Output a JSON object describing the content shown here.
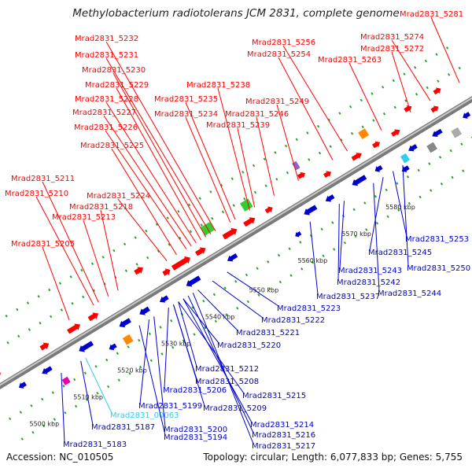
{
  "header": {
    "title": "Methylobacterium radiotolerans JCM 2831, complete genome"
  },
  "footer": {
    "accession": "Accession: NC_010505",
    "topology": "Topology: circular; Length: 6,077,833 bp; Genes: 5,755"
  },
  "colors": {
    "top_strand": "#ff0000",
    "bottom_strand": "#0000cc",
    "rna": "#33ccee",
    "backbone": "#999999"
  },
  "scale_ticks": [
    "5500 kbp",
    "5510 kbp",
    "5520 kbp",
    "5530 kbp",
    "5540 kbp",
    "5550 kbp",
    "5560 kbp",
    "5570 kbp",
    "5580 kbp"
  ],
  "top_labels": [
    "Mrad2831_5281",
    "Mrad2831_5274",
    "Mrad2831_5256",
    "Mrad2831_5272",
    "Mrad2831_5254",
    "Mrad2831_5263",
    "Mrad2831_5232",
    "Mrad2831_5231",
    "Mrad2831_5230",
    "Mrad2831_5229",
    "Mrad2831_5238",
    "Mrad2831_5228",
    "Mrad2831_5235",
    "Mrad2831_5249",
    "Mrad2831_5227",
    "Mrad2831_5234",
    "Mrad2831_5246",
    "Mrad2831_5226",
    "Mrad2831_5239",
    "Mrad2831_5225",
    "Mrad2831_5211",
    "Mrad2831_5210",
    "Mrad2831_5224",
    "Mrad2831_5218",
    "Mrad2831_5213",
    "Mrad2831_5205"
  ],
  "bottom_labels": [
    "Mrad2831_5253",
    "Mrad2831_5245",
    "Mrad2831_5250",
    "Mrad2831_5243",
    "Mrad2831_5242",
    "Mrad2831_5237",
    "Mrad2831_5244",
    "Mrad2831_5223",
    "Mrad2831_5222",
    "Mrad2831_5221",
    "Mrad2831_5220",
    "Mrad2831_5212",
    "Mrad2831_5208",
    "Mrad2831_5206",
    "Mrad2831_5215",
    "Mrad2831_5199",
    "Mrad2831_5209",
    "Mrad2831_00063",
    "Mrad2831_5187",
    "Mrad2831_5200",
    "Mrad2831_5214",
    "Mrad2831_5194",
    "Mrad2831_5216",
    "Mrad2831_5183",
    "Mrad2831_5217"
  ]
}
